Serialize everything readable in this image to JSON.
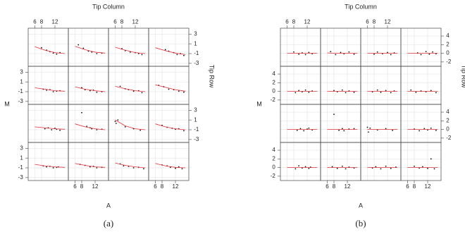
{
  "chart_data": [
    {
      "type": "trellis-scatter",
      "title": "Tip Column",
      "xlabel": "A",
      "ylabel": "M",
      "y2label": "Tip Row",
      "caption": "(a)",
      "xlim": [
        4,
        16
      ],
      "ylim": [
        -3.6,
        4.2
      ],
      "xticks": [
        6,
        8,
        12
      ],
      "yticks": [
        3,
        1,
        -1,
        -3
      ],
      "point_color": "#111111",
      "line_color": "#e0303a",
      "grid": true,
      "fit_x": [
        6,
        9,
        12,
        15
      ],
      "panels": [
        {
          "x": [
            8,
            9.5,
            10.5,
            11.5,
            12.5,
            13.5
          ],
          "y": [
            0.2,
            -0.3,
            -0.6,
            -0.9,
            -1.1,
            -0.8
          ],
          "fit_y": [
            0.4,
            -0.3,
            -0.8,
            -1.0
          ]
        },
        {
          "x": [
            7,
            8.5,
            10,
            11,
            12.5,
            14
          ],
          "y": [
            0.8,
            0.1,
            -0.5,
            -0.7,
            -1,
            -0.9
          ],
          "fit_y": [
            0.5,
            -0.2,
            -0.7,
            -0.9
          ]
        },
        {
          "x": [
            8,
            9,
            10.5,
            12,
            13,
            14
          ],
          "y": [
            0,
            -0.4,
            -0.7,
            -0.8,
            -1,
            -1.2
          ],
          "fit_y": [
            0.3,
            -0.3,
            -0.8,
            -1.0
          ]
        },
        {
          "x": [
            9,
            10,
            11.5,
            12.5,
            13.5,
            14.5
          ],
          "y": [
            -0.2,
            -0.5,
            -0.8,
            -1.2,
            -1,
            -1.4
          ],
          "fit_y": [
            0.2,
            -0.4,
            -0.9,
            -1.2
          ]
        },
        {
          "x": [
            8.5,
            9.5,
            10.5,
            11.5,
            12.5,
            13.5
          ],
          "y": [
            -0.5,
            -0.7,
            -0.6,
            -1,
            -0.9,
            -0.8
          ],
          "fit_y": [
            -0.2,
            -0.5,
            -0.8,
            -0.9
          ]
        },
        {
          "x": [
            8,
            9,
            10.5,
            11.5,
            12.5,
            14
          ],
          "y": [
            -0.2,
            -0.6,
            -0.8,
            -0.7,
            -1.1,
            -1
          ],
          "fit_y": [
            0.0,
            -0.5,
            -0.8,
            -1.0
          ]
        },
        {
          "x": [
            7.5,
            9,
            10,
            11.5,
            13,
            14
          ],
          "y": [
            0.1,
            -0.4,
            -0.6,
            -0.9,
            -0.8,
            -1.2
          ],
          "fit_y": [
            0.1,
            -0.4,
            -0.8,
            -1.0
          ]
        },
        {
          "x": [
            7,
            8.5,
            10,
            11.5,
            13,
            14.5
          ],
          "y": [
            0.3,
            0,
            -0.5,
            -0.6,
            -0.9,
            -1.1
          ],
          "fit_y": [
            0.4,
            -0.1,
            -0.6,
            -0.9
          ]
        },
        {
          "x": [
            9,
            10,
            11,
            12,
            12.5,
            13.5
          ],
          "y": [
            -0.8,
            -0.6,
            -1,
            -0.7,
            -0.9,
            -1.1
          ],
          "fit_y": [
            -0.4,
            -0.6,
            -0.8,
            -0.9
          ]
        },
        {
          "x": [
            8,
            9.5,
            10.5,
            11,
            12.5,
            14
          ],
          "y": [
            2.5,
            -0.3,
            -0.6,
            -0.8,
            -1,
            -0.9
          ],
          "fit_y": [
            0.2,
            -0.4,
            -0.8,
            -1.0
          ]
        },
        {
          "x": [
            6,
            6.3,
            6.8,
            9,
            11.5,
            13.5
          ],
          "y": [
            0.7,
            0.3,
            1,
            -0.4,
            -0.8,
            -1.1
          ],
          "fit_y": [
            1.0,
            -0.2,
            -0.8,
            -1.0
          ]
        },
        {
          "x": [
            8,
            9.5,
            11,
            12,
            13,
            14.5
          ],
          "y": [
            -0.1,
            -0.5,
            -0.7,
            -0.9,
            -0.8,
            -1.2
          ],
          "fit_y": [
            0.2,
            -0.4,
            -0.8,
            -1.0
          ]
        },
        {
          "x": [
            8.5,
            9.5,
            10.5,
            11.5,
            12.5,
            13
          ],
          "y": [
            -0.6,
            -0.8,
            -0.7,
            -1,
            -0.9,
            -0.8
          ],
          "fit_y": [
            -0.3,
            -0.6,
            -0.8,
            -0.9
          ]
        },
        {
          "x": [
            7.5,
            9,
            10.5,
            11.5,
            12.5,
            14
          ],
          "y": [
            -0.3,
            -0.5,
            -0.8,
            -0.7,
            -1,
            -0.9
          ],
          "fit_y": [
            -0.1,
            -0.5,
            -0.8,
            -0.9
          ]
        },
        {
          "x": [
            7.5,
            8.5,
            10,
            11.5,
            13,
            14.5
          ],
          "y": [
            -0.2,
            -0.6,
            -0.7,
            -1,
            -0.9,
            -1.2
          ],
          "fit_y": [
            0.0,
            -0.5,
            -0.8,
            -1.0
          ]
        },
        {
          "x": [
            8,
            9.5,
            10.5,
            12,
            13,
            14
          ],
          "y": [
            -0.4,
            -0.6,
            -0.9,
            -1.1,
            -0.8,
            -1.2
          ],
          "fit_y": [
            -0.1,
            -0.6,
            -0.9,
            -1.0
          ]
        }
      ]
    },
    {
      "type": "trellis-scatter",
      "title": "Tip Column",
      "xlabel": "A",
      "ylabel": "M",
      "y2label": "Tip Row",
      "caption": "(b)",
      "xlim": [
        4,
        16
      ],
      "ylim": [
        -3,
        5.8
      ],
      "xticks": [
        6,
        8,
        12
      ],
      "yticks": [
        4,
        2,
        0,
        -2
      ],
      "point_color": "#111111",
      "line_color": "#e0303a",
      "grid": true,
      "fit_x": [
        6,
        9,
        12,
        15
      ],
      "panels": [
        {
          "x": [
            8,
            9.5,
            10.5,
            11.5,
            12.5,
            13.5
          ],
          "y": [
            0.3,
            -0.2,
            0.1,
            -0.3,
            0.2,
            -0.1
          ],
          "fit_y": [
            0,
            0,
            0,
            0
          ]
        },
        {
          "x": [
            7,
            8.5,
            10,
            11,
            12.5,
            14
          ],
          "y": [
            0.4,
            -0.3,
            0.2,
            -0.1,
            0.3,
            -0.2
          ],
          "fit_y": [
            0.1,
            0,
            0,
            0
          ]
        },
        {
          "x": [
            8,
            9,
            10.5,
            12,
            13,
            14
          ],
          "y": [
            -0.2,
            0.3,
            -0.1,
            0.2,
            -0.3,
            0.1
          ],
          "fit_y": [
            0,
            0,
            0,
            0
          ]
        },
        {
          "x": [
            9,
            10,
            11.5,
            12.5,
            13.5,
            14.5
          ],
          "y": [
            0.1,
            -0.3,
            0.4,
            -0.2,
            0.3,
            -0.1
          ],
          "fit_y": [
            0,
            0,
            0,
            0
          ]
        },
        {
          "x": [
            8.5,
            9.5,
            10.5,
            11.5,
            12.5,
            13.5
          ],
          "y": [
            -0.3,
            0.2,
            -0.1,
            0.3,
            -0.2,
            0.1
          ],
          "fit_y": [
            0,
            0,
            0,
            0
          ]
        },
        {
          "x": [
            8,
            9,
            10.5,
            11.5,
            12.5,
            14
          ],
          "y": [
            0.2,
            -0.1,
            0.3,
            -0.3,
            0.1,
            -0.2
          ],
          "fit_y": [
            0,
            0,
            0,
            0
          ]
        },
        {
          "x": [
            7.5,
            9,
            10,
            11.5,
            13,
            14
          ],
          "y": [
            -0.1,
            0.3,
            -0.2,
            0.2,
            -0.3,
            0.1
          ],
          "fit_y": [
            0,
            0,
            0,
            0
          ]
        },
        {
          "x": [
            7,
            8.5,
            10,
            11.5,
            13,
            14.5
          ],
          "y": [
            0.3,
            -0.2,
            0.1,
            -0.1,
            0.2,
            -0.3
          ],
          "fit_y": [
            0,
            0,
            0,
            0
          ]
        },
        {
          "x": [
            9,
            10,
            11,
            12,
            12.5,
            13.5
          ],
          "y": [
            -0.2,
            0.2,
            -0.3,
            0.1,
            0.3,
            -0.1
          ],
          "fit_y": [
            0,
            0,
            0,
            0
          ]
        },
        {
          "x": [
            8,
            9.5,
            10.5,
            11,
            12.5,
            14
          ],
          "y": [
            3.5,
            -0.2,
            0.2,
            -0.3,
            0.1,
            0.2
          ],
          "fit_y": [
            0,
            0,
            0,
            0
          ]
        },
        {
          "x": [
            6,
            6.3,
            6.8,
            9,
            11.5,
            13.5
          ],
          "y": [
            0.5,
            -0.6,
            0.3,
            -0.1,
            0.2,
            -0.2
          ],
          "fit_y": [
            0,
            0,
            0,
            0
          ]
        },
        {
          "x": [
            8,
            9.5,
            11,
            12,
            13,
            14.5
          ],
          "y": [
            0.1,
            -0.3,
            0.2,
            -0.1,
            0.3,
            -0.2
          ],
          "fit_y": [
            0,
            0,
            0,
            0
          ]
        },
        {
          "x": [
            8.5,
            9.5,
            10.5,
            11.5,
            12.5,
            13
          ],
          "y": [
            -0.3,
            0.4,
            -0.1,
            0.2,
            -0.2,
            0.1
          ],
          "fit_y": [
            0,
            0,
            0,
            0
          ]
        },
        {
          "x": [
            7.5,
            9,
            10.5,
            11.5,
            12.5,
            14
          ],
          "y": [
            0.2,
            -0.2,
            0.3,
            -0.3,
            0.1,
            -0.1
          ],
          "fit_y": [
            0,
            0,
            0,
            0
          ]
        },
        {
          "x": [
            7.5,
            8.5,
            10,
            11.5,
            13,
            14.5
          ],
          "y": [
            -0.1,
            0.2,
            -0.3,
            0.3,
            -0.2,
            0.1
          ],
          "fit_y": [
            0,
            0,
            0,
            0
          ]
        },
        {
          "x": [
            8,
            9.5,
            10.5,
            12,
            13,
            14
          ],
          "y": [
            0.3,
            -0.1,
            0.2,
            -0.2,
            2.0,
            -0.3
          ],
          "fit_y": [
            0,
            0,
            0,
            0
          ]
        }
      ]
    }
  ]
}
